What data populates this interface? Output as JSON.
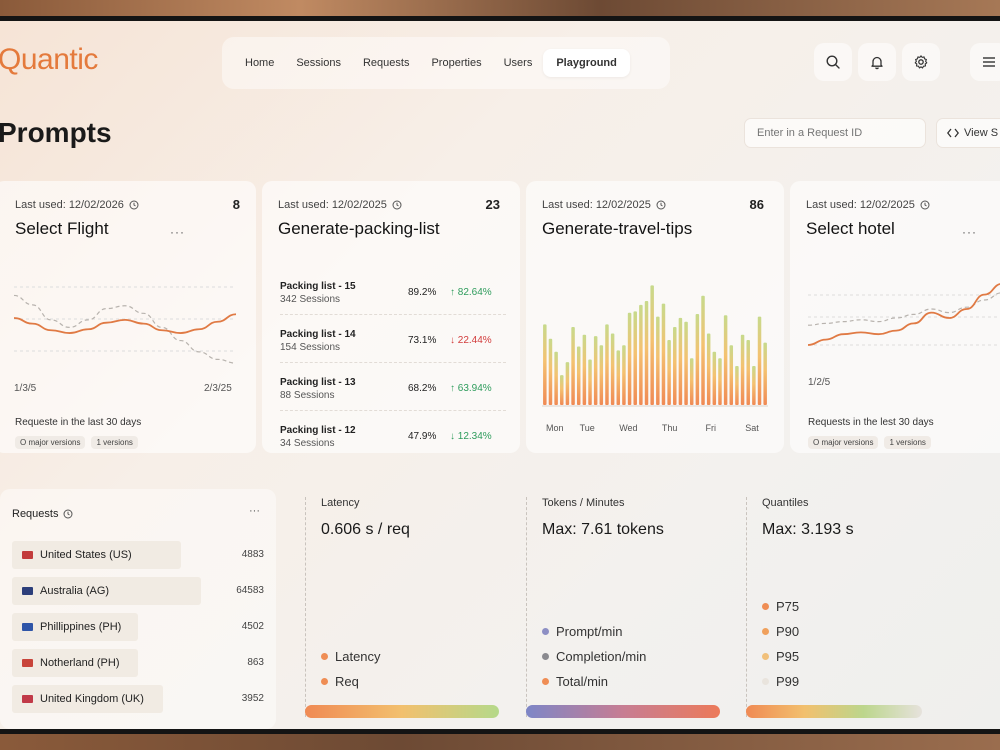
{
  "app": {
    "name": "Quantic",
    "page_title": "Prompts",
    "accent": "#e47a3c"
  },
  "nav": {
    "items": [
      {
        "label": "Home"
      },
      {
        "label": "Sessions"
      },
      {
        "label": "Requests"
      },
      {
        "label": "Properties"
      },
      {
        "label": "Users"
      },
      {
        "label": "Playground",
        "active": true
      }
    ],
    "icons": [
      "search-icon",
      "bell-icon",
      "gear-icon",
      "menu-icon"
    ]
  },
  "toolbar": {
    "request_placeholder": "Enter in a Request ID",
    "view_label": "View S"
  },
  "cards": [
    {
      "meta": "Last used: 12/02/2026",
      "count": "8",
      "title": "Select Flight",
      "axis_start": "1/3/5",
      "axis_end": "2/3/25",
      "footer": "Requeste in the last 30 days",
      "pills": [
        "O major versions",
        "1 versions"
      ],
      "series": {
        "solid": [
          50,
          44,
          37,
          34,
          38,
          45,
          48,
          44,
          37,
          34,
          38,
          46,
          54
        ],
        "dashed": [
          74,
          64,
          48,
          40,
          48,
          60,
          63,
          55,
          40,
          26,
          14,
          6,
          2
        ]
      }
    },
    {
      "meta": "Last used: 12/02/2025",
      "count": "23",
      "title": "Generate-packing-list",
      "rows": [
        {
          "name": "Packing list - 15",
          "sessions": "342 Sessions",
          "pct": "89.2%",
          "delta": "82.64%",
          "dir": "up"
        },
        {
          "name": "Packing list - 14",
          "sessions": "154 Sessions",
          "pct": "73.1%",
          "delta": "22.44%",
          "dir": "down"
        },
        {
          "name": "Packing list - 13",
          "sessions": "88 Sessions",
          "pct": "68.2%",
          "delta": "63.94%",
          "dir": "up"
        },
        {
          "name": "Packing list - 12",
          "sessions": "34 Sessions",
          "pct": "47.9%",
          "delta": "12.34%",
          "dir": "down"
        }
      ]
    },
    {
      "meta": "Last used: 12/02/2025",
      "count": "86",
      "title": "Generate-travel-tips",
      "days": [
        "Mon",
        "Tue",
        "Wed",
        "Thu",
        "Fri",
        "Sat"
      ],
      "bars": [
        0.62,
        0.51,
        0.41,
        0.23,
        0.33,
        0.6,
        0.45,
        0.54,
        0.35,
        0.53,
        0.46,
        0.62,
        0.55,
        0.42,
        0.46,
        0.71,
        0.72,
        0.77,
        0.8,
        0.92,
        0.68,
        0.78,
        0.5,
        0.6,
        0.67,
        0.64,
        0.36,
        0.7,
        0.84,
        0.55,
        0.41,
        0.36,
        0.69,
        0.46,
        0.3,
        0.54,
        0.5,
        0.3,
        0.68,
        0.48
      ]
    },
    {
      "meta": "Last used: 12/02/2025",
      "count": "",
      "title": "Select hotel",
      "axis_start": "1/2/5",
      "footer": "Requests in the lest 30 days",
      "pills": [
        "O major versions",
        "1 versions"
      ],
      "series": {
        "solid": [
          20,
          26,
          32,
          34,
          32,
          36,
          44,
          56,
          50,
          60,
          76,
          88
        ],
        "dashed": [
          42,
          44,
          46,
          48,
          46,
          50,
          54,
          60,
          56,
          62,
          70,
          78
        ]
      }
    }
  ],
  "requests_panel": {
    "title": "Requests",
    "rows": [
      {
        "name": "United States (US)",
        "value": "4883",
        "share": 0.67,
        "flag": "#c23b3b"
      },
      {
        "name": "Australia (AG)",
        "value": "64583",
        "share": 0.75,
        "flag": "#2c3e7a"
      },
      {
        "name": "Phillippines (PH)",
        "value": "4502",
        "share": 0.5,
        "flag": "#2f55a8"
      },
      {
        "name": "Notherland (PH)",
        "value": "863",
        "share": 0.5,
        "flag": "#c8443a"
      },
      {
        "name": "United Kingdom (UK)",
        "value": "3952",
        "share": 0.6,
        "flag": "#c13a48"
      }
    ]
  },
  "metrics": [
    {
      "label": "Latency",
      "value": "0.606 s / req",
      "legend": [
        {
          "label": "Latency",
          "color": "#ef8d54"
        },
        {
          "label": "Req",
          "color": "#ef8d54"
        }
      ],
      "gradient": [
        "#f08a54",
        "#f2c06e",
        "#b5d98a"
      ]
    },
    {
      "label": "Tokens / Minutes",
      "value": "Max: 7.61 tokens",
      "legend": [
        {
          "label": "Prompt/min",
          "color": "#8d8fc4"
        },
        {
          "label": "Completion/min",
          "color": "#8a8a8f"
        },
        {
          "label": "Total/min",
          "color": "#ef8d54"
        }
      ],
      "gradient": [
        "#7d86c7",
        "#c77d93",
        "#ec7a5a"
      ]
    },
    {
      "label": "Quantiles",
      "value": "Max: 3.193 s",
      "legend": [
        {
          "label": "P75",
          "color": "#ef8d54"
        },
        {
          "label": "P90",
          "color": "#f0a05c"
        },
        {
          "label": "P95",
          "color": "#f1c07a"
        },
        {
          "label": "P99",
          "color": "#e9e4dd"
        }
      ],
      "gradient": [
        "#f08a54",
        "#f2c06e",
        "#bcd68c",
        "#e6e2dc"
      ]
    }
  ]
}
